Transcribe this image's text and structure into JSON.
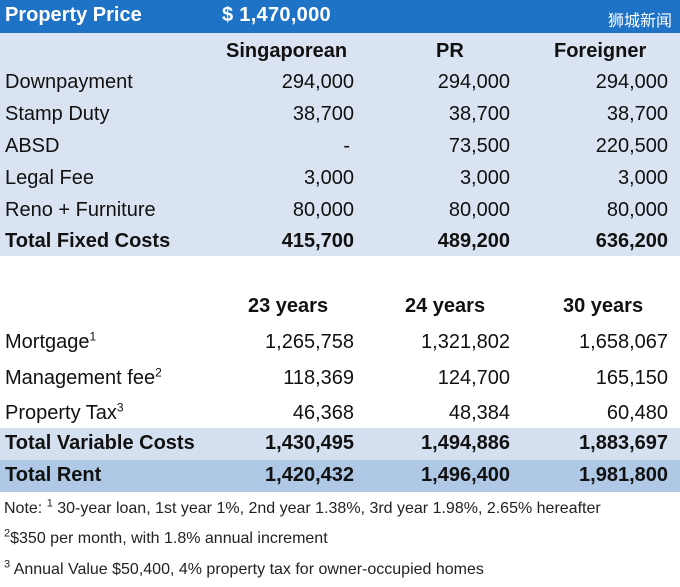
{
  "header": {
    "label": "Property Price",
    "value": "$  1,470,000",
    "watermark": "狮城新闻"
  },
  "fixed": {
    "columns": [
      "Singaporean",
      "PR",
      "Foreigner"
    ],
    "rows": [
      {
        "label": "Downpayment",
        "values": [
          "294,000",
          "294,000",
          "294,000"
        ]
      },
      {
        "label": "Stamp Duty",
        "values": [
          "38,700",
          "38,700",
          "38,700"
        ]
      },
      {
        "label": "ABSD",
        "values": [
          "-",
          "73,500",
          "220,500"
        ]
      },
      {
        "label": "Legal Fee",
        "values": [
          "3,000",
          "3,000",
          "3,000"
        ]
      },
      {
        "label": "Reno + Furniture",
        "values": [
          "80,000",
          "80,000",
          "80,000"
        ]
      }
    ],
    "total": {
      "label": "Total Fixed Costs",
      "values": [
        "415,700",
        "489,200",
        "636,200"
      ]
    }
  },
  "variable": {
    "columns": [
      "23 years",
      "24 years",
      "30 years"
    ],
    "rows": [
      {
        "label": "Mortgage",
        "sup": "1",
        "values": [
          "1,265,758",
          "1,321,802",
          "1,658,067"
        ]
      },
      {
        "label": "Management fee",
        "sup": "2",
        "values": [
          "118,369",
          "124,700",
          "165,150"
        ]
      },
      {
        "label": "Property Tax",
        "sup": "3",
        "values": [
          "46,368",
          "48,384",
          "60,480"
        ]
      }
    ],
    "total": {
      "label": "Total Variable Costs",
      "values": [
        "1,430,495",
        "1,494,886",
        "1,883,697"
      ]
    },
    "rent": {
      "label": "Total Rent",
      "values": [
        "1,420,432",
        "1,496,400",
        "1,981,800"
      ]
    }
  },
  "notes": {
    "n1_prefix": "Note: ",
    "n1_sup": "1",
    "n1_text": " 30-year loan, 1st year 1%, 2nd year 1.38%, 3rd year 1.98%, 2.65% hereafter",
    "n2_sup": "2",
    "n2_text": "$350 per month, with 1.8% annual increment",
    "n3_sup": "3",
    "n3_text": " Annual Value $50,400, 4% property tax for owner-occupied homes"
  }
}
